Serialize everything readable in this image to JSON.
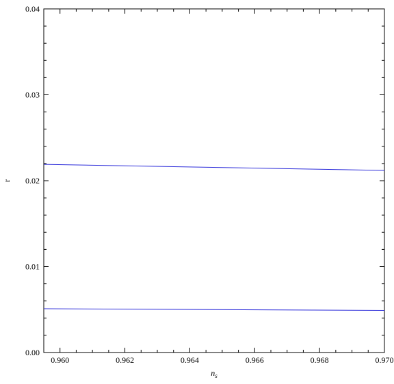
{
  "chart_data": {
    "type": "line",
    "title": "",
    "xlabel": "n",
    "xlabel_subscript": "s",
    "ylabel": "r",
    "xlim": [
      0.9595,
      0.97
    ],
    "ylim": [
      0.0,
      0.04
    ],
    "x_ticks": [
      0.96,
      0.962,
      0.964,
      0.966,
      0.968,
      0.97
    ],
    "x_tick_labels": [
      "0.960",
      "0.962",
      "0.964",
      "0.966",
      "0.968",
      "0.970"
    ],
    "y_ticks": [
      0.0,
      0.01,
      0.02,
      0.03,
      0.04
    ],
    "y_tick_labels": [
      "0.00",
      "0.01",
      "0.02",
      "0.03",
      "0.04"
    ],
    "grid": false,
    "legend": "none",
    "series_color": "#2b2bd9",
    "series": [
      {
        "x": [
          0.9595,
          0.97
        ],
        "y": [
          0.0219,
          0.0212
        ]
      },
      {
        "x": [
          0.9595,
          0.97
        ],
        "y": [
          0.0051,
          0.0049
        ]
      }
    ]
  }
}
